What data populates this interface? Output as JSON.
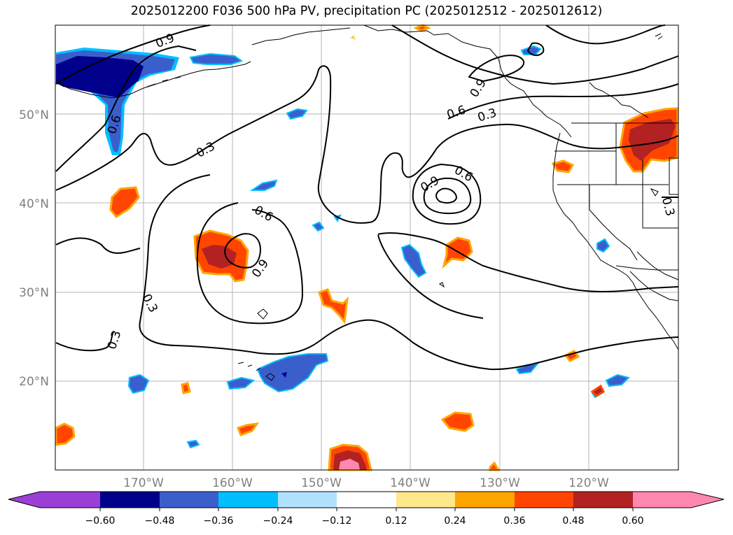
{
  "title": "2025012200 F036 500 hPa PV, precipitation PC (2025012512 - 2025012612)",
  "lon_labels": [
    "170°W",
    "160°W",
    "150°W",
    "140°W",
    "130°W",
    "120°W"
  ],
  "lat_labels": [
    "50°N",
    "40°N",
    "30°N",
    "20°N"
  ],
  "contour_labels": {
    "label_1": "0.9",
    "label_2": "0.6",
    "label_3": "0.3",
    "label_4": "0.6",
    "label_5": "0.9",
    "label_6": "0.3",
    "label_7": "0.3",
    "label_8": "0.9",
    "label_9": "0.6",
    "label_10": "0.9",
    "label_11": "0.3",
    "label_12": "0.6",
    "label_13": "0.3"
  },
  "colorbar": {
    "ticks": [
      "−0.60",
      "−0.48",
      "−0.36",
      "−0.24",
      "−0.12",
      "0.12",
      "0.24",
      "0.36",
      "0.48",
      "0.60"
    ],
    "colors": [
      "#9b3fd6",
      "#00008b",
      "#3a5fcd",
      "#00bfff",
      "#b0e2ff",
      "#ffffff",
      "#ffe88c",
      "#ffa500",
      "#ff4500",
      "#b22222",
      "#ff88b0"
    ]
  },
  "colors": {
    "grid": "#b4b4b4",
    "axis_label": "#808080",
    "contour": "#000000",
    "coast": "#000000"
  }
}
